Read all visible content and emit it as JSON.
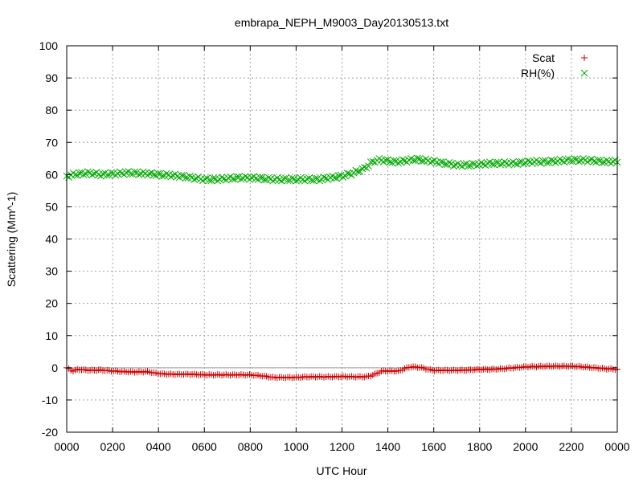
{
  "chart_data": {
    "type": "scatter",
    "title": "embrapa_NEPH_M9003_Day20130513.txt",
    "xlabel": "UTC Hour",
    "ylabel": "Scattering (Mm^-1)",
    "xlim": [
      0,
      24
    ],
    "ylim": [
      -20,
      100
    ],
    "x_ticks": [
      {
        "value": 0,
        "label": "0000"
      },
      {
        "value": 2,
        "label": "0200"
      },
      {
        "value": 4,
        "label": "0400"
      },
      {
        "value": 6,
        "label": "0600"
      },
      {
        "value": 8,
        "label": "0800"
      },
      {
        "value": 10,
        "label": "1000"
      },
      {
        "value": 12,
        "label": "1200"
      },
      {
        "value": 14,
        "label": "1400"
      },
      {
        "value": 16,
        "label": "1600"
      },
      {
        "value": 18,
        "label": "1800"
      },
      {
        "value": 20,
        "label": "2000"
      },
      {
        "value": 22,
        "label": "2200"
      },
      {
        "value": 24,
        "label": "0000"
      }
    ],
    "y_ticks": [
      -20,
      -10,
      0,
      10,
      20,
      30,
      40,
      50,
      60,
      70,
      80,
      90,
      100
    ],
    "grid": true,
    "zero_line": true,
    "legend_position": "top-right",
    "series": [
      {
        "name": "Scat",
        "marker": "plus",
        "color": "#cc0000",
        "x": [
          0.0,
          0.25,
          0.5,
          1.0,
          1.5,
          2.0,
          2.5,
          3.0,
          3.5,
          4.0,
          4.5,
          5.0,
          5.5,
          6.0,
          6.5,
          7.0,
          7.5,
          8.0,
          8.5,
          9.0,
          9.5,
          10.0,
          10.5,
          11.0,
          11.5,
          12.0,
          12.5,
          13.0,
          13.25,
          13.5,
          13.75,
          14.0,
          14.25,
          14.5,
          14.75,
          15.0,
          15.25,
          15.5,
          15.75,
          16.0,
          16.5,
          17.0,
          17.5,
          18.0,
          18.5,
          19.0,
          19.5,
          20.0,
          20.5,
          21.0,
          21.5,
          22.0,
          22.5,
          23.0,
          23.5,
          24.0
        ],
        "y": [
          0.0,
          -1.0,
          -0.5,
          -0.8,
          -0.7,
          -1.0,
          -1.2,
          -1.3,
          -1.2,
          -1.8,
          -2.0,
          -2.0,
          -2.0,
          -2.2,
          -2.2,
          -2.2,
          -2.2,
          -2.2,
          -2.5,
          -3.0,
          -3.0,
          -3.0,
          -2.8,
          -2.8,
          -2.8,
          -2.7,
          -2.8,
          -2.8,
          -2.5,
          -1.8,
          -1.0,
          -1.0,
          -1.0,
          -1.0,
          -0.2,
          0.3,
          0.2,
          0.0,
          -0.5,
          -0.8,
          -0.8,
          -0.8,
          -0.7,
          -0.5,
          -0.5,
          -0.3,
          0.0,
          0.3,
          0.4,
          0.5,
          0.5,
          0.5,
          0.3,
          0.0,
          -0.3,
          -0.5
        ]
      },
      {
        "name": "RH(%)",
        "marker": "cross",
        "color": "#00aa00",
        "x": [
          0.0,
          0.25,
          0.5,
          1.0,
          1.5,
          2.0,
          2.5,
          3.0,
          3.5,
          4.0,
          4.5,
          5.0,
          5.5,
          6.0,
          6.5,
          7.0,
          7.5,
          8.0,
          8.5,
          9.0,
          9.5,
          10.0,
          10.5,
          11.0,
          11.5,
          12.0,
          12.5,
          13.0,
          13.25,
          13.5,
          13.75,
          14.0,
          14.25,
          14.5,
          14.75,
          15.0,
          15.25,
          15.5,
          15.75,
          16.0,
          16.5,
          17.0,
          17.5,
          18.0,
          18.5,
          19.0,
          19.5,
          20.0,
          20.5,
          21.0,
          21.5,
          22.0,
          22.5,
          23.0,
          23.5,
          24.0
        ],
        "y": [
          59.5,
          60.0,
          60.2,
          60.5,
          60.0,
          60.2,
          60.5,
          60.5,
          60.3,
          60.0,
          59.8,
          59.5,
          59.0,
          58.5,
          58.5,
          58.8,
          59.0,
          59.0,
          58.8,
          58.5,
          58.5,
          58.5,
          58.5,
          58.5,
          59.0,
          59.5,
          60.5,
          62.0,
          63.5,
          64.5,
          64.5,
          64.2,
          64.0,
          64.0,
          64.3,
          64.5,
          64.8,
          64.5,
          64.3,
          64.0,
          63.5,
          63.0,
          63.0,
          63.2,
          63.5,
          63.5,
          63.5,
          63.8,
          64.0,
          64.0,
          64.3,
          64.5,
          64.5,
          64.3,
          64.0,
          64.0
        ]
      }
    ]
  }
}
